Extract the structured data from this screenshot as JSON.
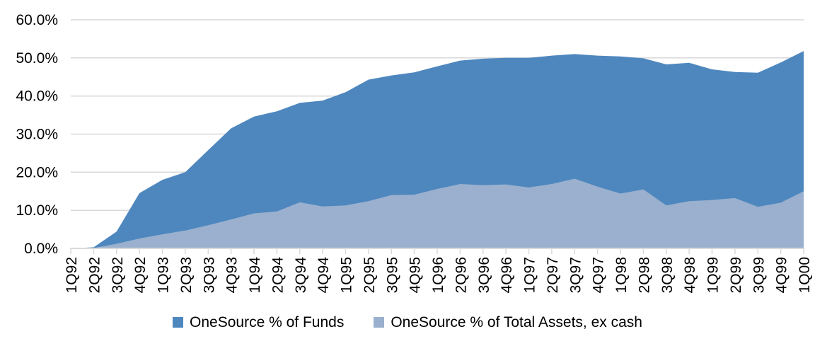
{
  "chart_data": {
    "type": "area",
    "title": "",
    "xlabel": "",
    "ylabel": "",
    "categories": [
      "1Q92",
      "2Q92",
      "3Q92",
      "4Q92",
      "1Q93",
      "2Q93",
      "3Q93",
      "4Q93",
      "1Q94",
      "2Q94",
      "3Q94",
      "4Q94",
      "1Q95",
      "2Q95",
      "3Q95",
      "4Q95",
      "1Q96",
      "2Q96",
      "3Q96",
      "4Q96",
      "1Q97",
      "2Q97",
      "3Q97",
      "4Q97",
      "1Q98",
      "2Q98",
      "3Q98",
      "4Q98",
      "1Q99",
      "2Q99",
      "3Q99",
      "4Q99",
      "1Q00"
    ],
    "series": [
      {
        "name": "OneSource % of Funds",
        "color": "#4E87BE",
        "values": [
          0,
          0.3,
          4.4,
          14.5,
          18.0,
          20.0,
          25.8,
          31.5,
          34.6,
          36.0,
          38.2,
          38.8,
          41.0,
          44.3,
          45.4,
          46.2,
          47.8,
          49.3,
          49.8,
          50.0,
          50.0,
          50.6,
          51.0,
          50.6,
          50.4,
          49.9,
          48.3,
          48.7,
          47.0,
          46.3,
          46.1,
          48.8,
          51.8
        ]
      },
      {
        "name": "OneSource % of Total Assets, ex cash",
        "color": "#9AB0CE",
        "values": [
          0,
          0.1,
          1.2,
          2.6,
          3.7,
          4.7,
          6.1,
          7.6,
          9.2,
          9.7,
          12.1,
          11.0,
          11.3,
          12.4,
          14.0,
          14.1,
          15.6,
          16.9,
          16.6,
          16.8,
          16.0,
          16.9,
          18.3,
          16.2,
          14.4,
          15.5,
          11.3,
          12.4,
          12.7,
          13.2,
          10.9,
          12.0,
          15.0
        ]
      }
    ],
    "ylim": [
      0,
      60
    ],
    "ytick_step": 10,
    "ytick_labels": [
      "0.0%",
      "10.0%",
      "20.0%",
      "30.0%",
      "40.0%",
      "50.0%",
      "60.0%"
    ],
    "grid": true,
    "grid_color": "#D9D9D9",
    "axis_color": "#D9D9D9",
    "text_color": "#000000",
    "tick_font_size": 21,
    "x_label_rotation": -90,
    "legend_position": "bottom"
  }
}
